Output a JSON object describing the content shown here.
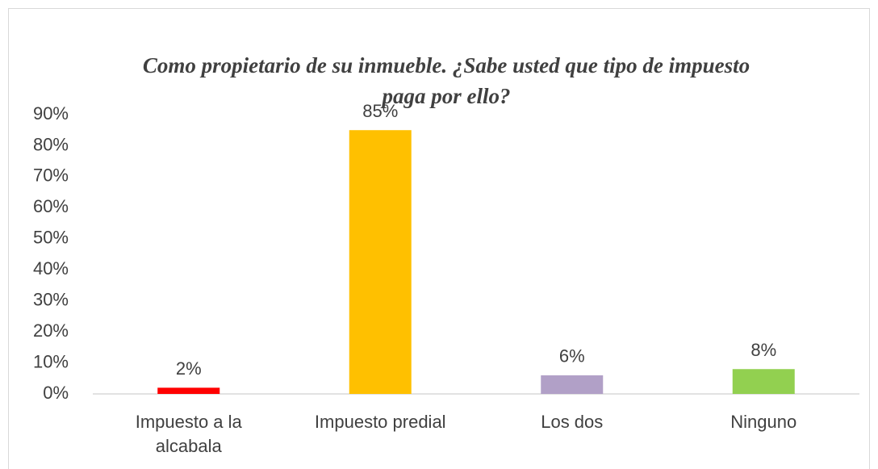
{
  "chart_data": {
    "type": "bar",
    "title": "Como propietario de su inmueble. ¿Sabe usted que tipo de impuesto paga por ello?",
    "categories": [
      "Impuesto a la alcabala",
      "Impuesto predial",
      "Los dos",
      "Ninguno"
    ],
    "values": [
      2,
      85,
      6,
      8
    ],
    "value_labels": [
      "2%",
      "85%",
      "6%",
      "8%"
    ],
    "colors": [
      "#ff0000",
      "#ffc000",
      "#b1a0c7",
      "#92d050"
    ],
    "ylim": [
      0,
      90
    ],
    "yticks": [
      {
        "value": 0,
        "label": "0%"
      },
      {
        "value": 10,
        "label": "10%"
      },
      {
        "value": 20,
        "label": "20%"
      },
      {
        "value": 30,
        "label": "30%"
      },
      {
        "value": 40,
        "label": "40%"
      },
      {
        "value": 50,
        "label": "50%"
      },
      {
        "value": 60,
        "label": "60%"
      },
      {
        "value": 70,
        "label": "70%"
      },
      {
        "value": 80,
        "label": "80%"
      },
      {
        "value": 90,
        "label": "90%"
      }
    ],
    "grid": false
  }
}
